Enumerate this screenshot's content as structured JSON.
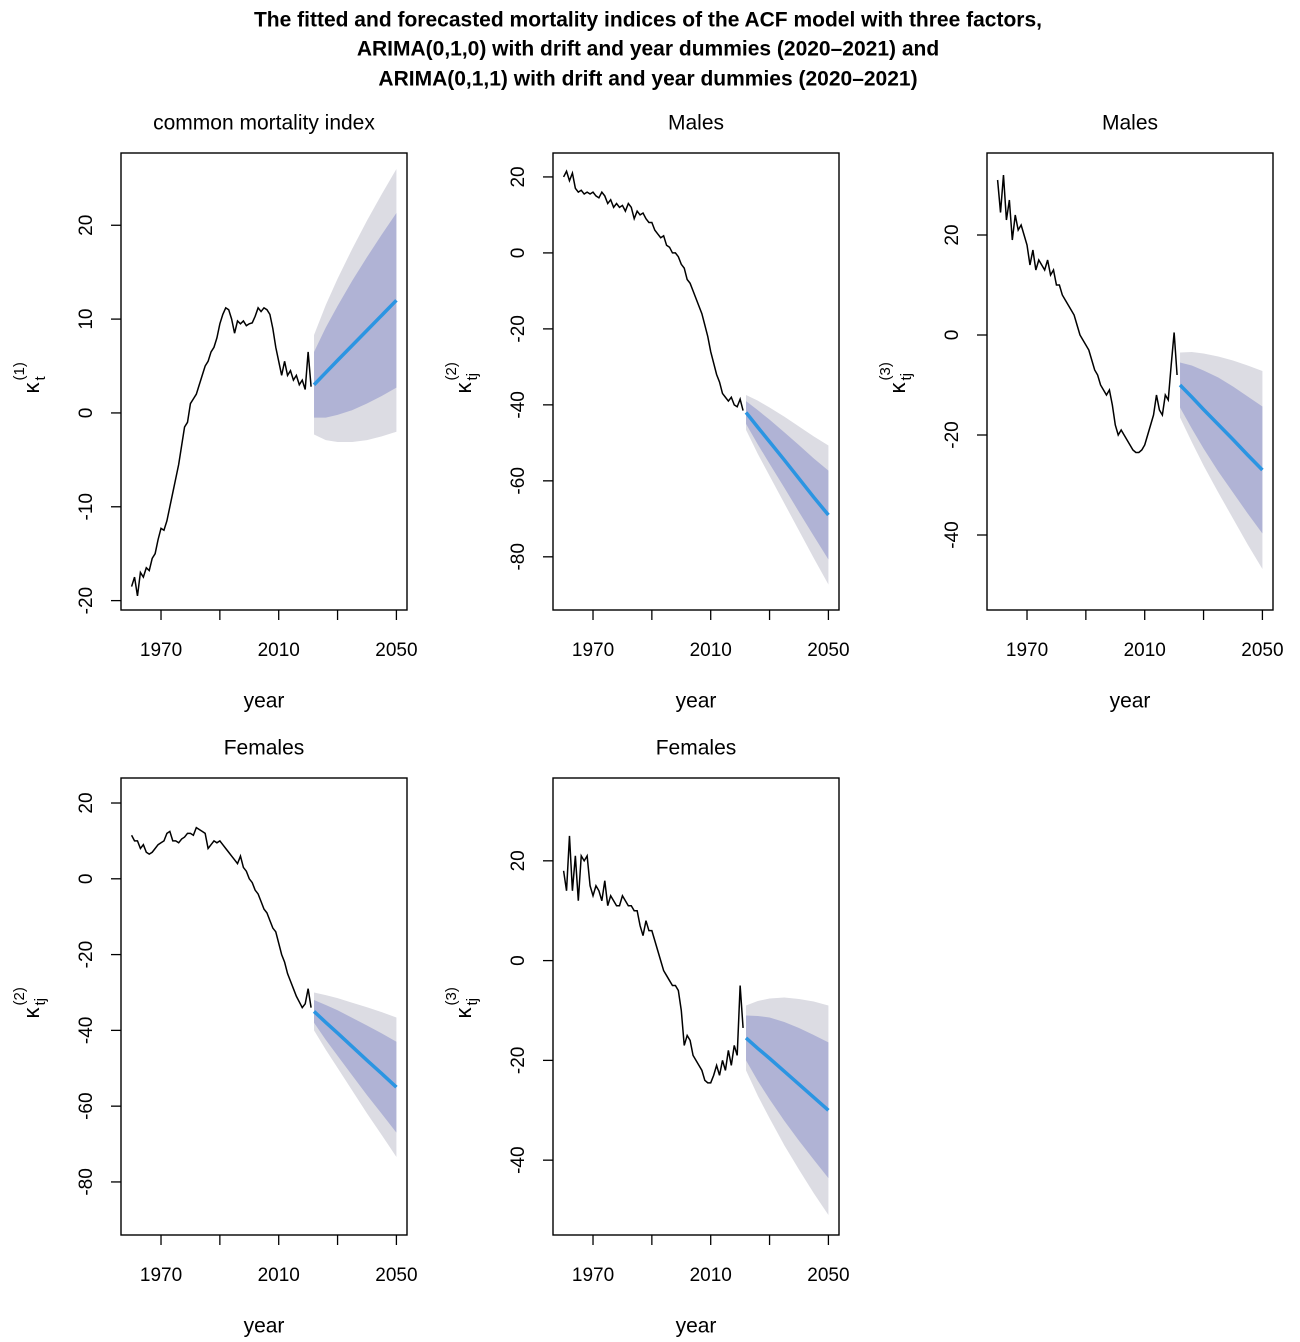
{
  "title": [
    "The fitted and forecasted mortality indices of the ACF model with three factors,",
    "ARIMA(0,1,0) with drift and year dummies (2020–2021) and",
    "ARIMA(0,1,1) with drift and year dummies (2020–2021)"
  ],
  "chart_data": [
    {
      "type": "line",
      "title": "common mortality index",
      "xlabel": "year",
      "ylabel": {
        "symbol": "κ",
        "sub": "t",
        "sup": "(1)"
      },
      "xlim": [
        1956.4,
        2053.6
      ],
      "xticks": [
        1970,
        2010,
        2050
      ],
      "xminor_ticks": [
        1990,
        2030
      ],
      "ylim": [
        -21,
        27.7
      ],
      "yticks": [
        -20,
        -10,
        0,
        10,
        20
      ],
      "fitted": {
        "color": "#000000",
        "x": [
          1960,
          1961,
          1962,
          1963,
          1964,
          1965,
          1966,
          1967,
          1968,
          1969,
          1970,
          1971,
          1972,
          1973,
          1974,
          1975,
          1976,
          1977,
          1978,
          1979,
          1980,
          1981,
          1982,
          1983,
          1984,
          1985,
          1986,
          1987,
          1988,
          1989,
          1990,
          1991,
          1992,
          1993,
          1994,
          1995,
          1996,
          1997,
          1998,
          1999,
          2000,
          2001,
          2002,
          2003,
          2004,
          2005,
          2006,
          2007,
          2008,
          2009,
          2010,
          2011,
          2012,
          2013,
          2014,
          2015,
          2016,
          2017,
          2018,
          2019,
          2020,
          2021
        ],
        "values": [
          -18.5,
          -17.5,
          -19.5,
          -17,
          -17.5,
          -16.5,
          -16.8,
          -15.5,
          -15,
          -13.5,
          -12.3,
          -12.5,
          -11.5,
          -10,
          -8.5,
          -7,
          -5.5,
          -3.5,
          -1.5,
          -1,
          1,
          1.5,
          2,
          3,
          4,
          5,
          5.5,
          6.5,
          7,
          8,
          9.5,
          10.5,
          11.2,
          11,
          10,
          8.5,
          9.8,
          9.5,
          9.8,
          9.3,
          9.5,
          9.6,
          10.3,
          11.2,
          10.8,
          11.2,
          11,
          10.5,
          9,
          7,
          5.5,
          4,
          5.5,
          4,
          4.5,
          3.5,
          4,
          3,
          3.5,
          2.5,
          6.5,
          2.8
        ]
      },
      "forecast": {
        "mean_color": "#2b95e2",
        "color80": "#b0b3d5",
        "color95": "#dcdce3",
        "x": [
          2022,
          2026,
          2030,
          2035,
          2040,
          2045,
          2050
        ],
        "mean": [
          3,
          4.3,
          5.6,
          7.2,
          8.8,
          10.4,
          12
        ],
        "lo80": [
          -0.5,
          -0.5,
          -0.2,
          0.3,
          1.0,
          1.8,
          2.7
        ],
        "hi80": [
          6.5,
          9.1,
          11.4,
          14.1,
          16.6,
          19.0,
          21.3
        ],
        "lo95": [
          -2.3,
          -2.9,
          -3.1,
          -3.1,
          -2.9,
          -2.5,
          -2.0
        ],
        "hi95": [
          8.3,
          11.5,
          14.3,
          17.5,
          20.5,
          23.3,
          26.0
        ]
      }
    },
    {
      "type": "line",
      "title": "Males",
      "xlabel": "year",
      "ylabel": {
        "symbol": "κ",
        "sub": "tj",
        "sup": "(2)"
      },
      "xlim": [
        1956.4,
        2053.6
      ],
      "xticks": [
        1970,
        2010,
        2050
      ],
      "xminor_ticks": [
        1990,
        2030
      ],
      "ylim": [
        -94,
        26.3
      ],
      "yticks": [
        -80,
        -60,
        -40,
        -20,
        0,
        20
      ],
      "fitted": {
        "color": "#000000",
        "x": [
          1960,
          1961,
          1962,
          1963,
          1964,
          1965,
          1966,
          1967,
          1968,
          1969,
          1970,
          1971,
          1972,
          1973,
          1974,
          1975,
          1976,
          1977,
          1978,
          1979,
          1980,
          1981,
          1982,
          1983,
          1984,
          1985,
          1986,
          1987,
          1988,
          1989,
          1990,
          1991,
          1992,
          1993,
          1994,
          1995,
          1996,
          1997,
          1998,
          1999,
          2000,
          2001,
          2002,
          2003,
          2004,
          2005,
          2006,
          2007,
          2008,
          2009,
          2010,
          2011,
          2012,
          2013,
          2014,
          2015,
          2016,
          2017,
          2018,
          2019,
          2020,
          2021
        ],
        "values": [
          20,
          21.5,
          19,
          21,
          17,
          16,
          16.5,
          15.5,
          16,
          15.5,
          16,
          15,
          14.5,
          16,
          15,
          13,
          14,
          12,
          13,
          12,
          12.5,
          11,
          13,
          12,
          9,
          11,
          10,
          10.5,
          9,
          8,
          8,
          6,
          5,
          4,
          4.5,
          2,
          1.5,
          0,
          0,
          -1,
          -3,
          -4,
          -7,
          -8,
          -10,
          -12,
          -14,
          -16,
          -19,
          -22,
          -26,
          -29,
          -32,
          -34,
          -37,
          -38,
          -39,
          -38,
          -40,
          -40.5,
          -38.5,
          -41.5
        ]
      },
      "forecast": {
        "mean_color": "#2b95e2",
        "color80": "#b0b3d5",
        "color95": "#dcdce3",
        "x": [
          2022,
          2026,
          2030,
          2035,
          2040,
          2045,
          2050
        ],
        "mean": [
          -42,
          -45.9,
          -49.7,
          -54.5,
          -59.4,
          -64.3,
          -69
        ],
        "lo80": [
          -45,
          -50.4,
          -55.5,
          -61.8,
          -68.2,
          -74.5,
          -80.7
        ],
        "hi80": [
          -39,
          -41.4,
          -43.9,
          -47.2,
          -50.6,
          -54.1,
          -57.3
        ],
        "lo95": [
          -46.6,
          -52.9,
          -58.7,
          -65.9,
          -73.1,
          -80.3,
          -87.3
        ],
        "hi95": [
          -37.4,
          -38.9,
          -40.7,
          -43.1,
          -45.7,
          -48.3,
          -50.7
        ]
      }
    },
    {
      "type": "line",
      "title": "Males",
      "xlabel": "year",
      "ylabel": {
        "symbol": "κ",
        "sub": "tj",
        "sup": "(3)"
      },
      "xlim": [
        1956.4,
        2053.6
      ],
      "xticks": [
        1970,
        2010,
        2050
      ],
      "xminor_ticks": [
        1990,
        2030
      ],
      "ylim": [
        -55,
        36.4
      ],
      "yticks": [
        -40,
        -20,
        0,
        20
      ],
      "fitted": {
        "color": "#000000",
        "x": [
          1960,
          1961,
          1962,
          1963,
          1964,
          1965,
          1966,
          1967,
          1968,
          1969,
          1970,
          1971,
          1972,
          1973,
          1974,
          1975,
          1976,
          1977,
          1978,
          1979,
          1980,
          1981,
          1982,
          1983,
          1984,
          1985,
          1986,
          1987,
          1988,
          1989,
          1990,
          1991,
          1992,
          1993,
          1994,
          1995,
          1996,
          1997,
          1998,
          1999,
          2000,
          2001,
          2002,
          2003,
          2004,
          2005,
          2006,
          2007,
          2008,
          2009,
          2010,
          2011,
          2012,
          2013,
          2014,
          2015,
          2016,
          2017,
          2018,
          2019,
          2020,
          2021
        ],
        "values": [
          31,
          24.5,
          32,
          23,
          27,
          19,
          24,
          21,
          22,
          20,
          18,
          14,
          17,
          13,
          15,
          14,
          13,
          15,
          12,
          13,
          10,
          10,
          8,
          7,
          6,
          5,
          4,
          2,
          0,
          -1,
          -2,
          -3,
          -5,
          -7,
          -8,
          -10,
          -11,
          -12,
          -11,
          -14,
          -18,
          -20,
          -19,
          -20,
          -21,
          -22,
          -23,
          -23.5,
          -23.5,
          -23,
          -22,
          -20,
          -18,
          -16,
          -12,
          -15,
          -16,
          -12,
          -13,
          -6,
          0.5,
          -8
        ]
      },
      "forecast": {
        "mean_color": "#2b95e2",
        "color80": "#b0b3d5",
        "color95": "#dcdce3",
        "x": [
          2022,
          2026,
          2030,
          2035,
          2040,
          2045,
          2050
        ],
        "mean": [
          -10,
          -12.4,
          -14.9,
          -17.9,
          -20.9,
          -24.0,
          -27
        ],
        "lo80": [
          -14.5,
          -18.7,
          -22.7,
          -27.3,
          -31.5,
          -35.7,
          -39.7
        ],
        "hi80": [
          -5.5,
          -6.1,
          -7.1,
          -8.5,
          -10.3,
          -12.3,
          -14.3
        ],
        "lo95": [
          -16.5,
          -21.4,
          -26.1,
          -31.5,
          -36.7,
          -41.9,
          -46.8
        ],
        "hi95": [
          -3.5,
          -3.4,
          -3.7,
          -4.3,
          -5.1,
          -6.1,
          -7.2
        ]
      }
    },
    {
      "type": "line",
      "title": "Females",
      "xlabel": "year",
      "ylabel": {
        "symbol": "κ",
        "sub": "tj",
        "sup": "(2)"
      },
      "xlim": [
        1956.4,
        2053.6
      ],
      "xticks": [
        1970,
        2010,
        2050
      ],
      "xminor_ticks": [
        1990,
        2030
      ],
      "ylim": [
        -94,
        26.6
      ],
      "yticks": [
        -80,
        -60,
        -40,
        -20,
        0,
        20
      ],
      "fitted": {
        "color": "#000000",
        "x": [
          1960,
          1961,
          1962,
          1963,
          1964,
          1965,
          1966,
          1967,
          1968,
          1969,
          1970,
          1971,
          1972,
          1973,
          1974,
          1975,
          1976,
          1977,
          1978,
          1979,
          1980,
          1981,
          1982,
          1983,
          1984,
          1985,
          1986,
          1987,
          1988,
          1989,
          1990,
          1991,
          1992,
          1993,
          1994,
          1995,
          1996,
          1997,
          1998,
          1999,
          2000,
          2001,
          2002,
          2003,
          2004,
          2005,
          2006,
          2007,
          2008,
          2009,
          2010,
          2011,
          2012,
          2013,
          2014,
          2015,
          2016,
          2017,
          2018,
          2019,
          2020,
          2021
        ],
        "values": [
          11.5,
          10,
          10,
          8,
          9,
          7,
          6.5,
          7,
          8,
          9,
          9.5,
          10,
          12,
          12.5,
          10,
          10,
          9.5,
          10.5,
          11,
          12,
          12,
          11.5,
          13.5,
          13,
          12.5,
          12,
          8,
          9,
          10,
          9.5,
          10,
          9,
          8,
          7,
          6,
          5,
          4,
          6,
          3,
          2,
          0,
          -1,
          -3,
          -4,
          -6,
          -8,
          -9,
          -11,
          -13,
          -14,
          -17,
          -20,
          -22,
          -25,
          -27,
          -29,
          -31,
          -32.5,
          -34,
          -33,
          -29,
          -34
        ]
      },
      "forecast": {
        "mean_color": "#2b95e2",
        "color80": "#b0b3d5",
        "color95": "#dcdce3",
        "x": [
          2022,
          2026,
          2030,
          2035,
          2040,
          2045,
          2050
        ],
        "mean": [
          -35,
          -37.9,
          -40.7,
          -44.3,
          -47.9,
          -51.4,
          -55
        ],
        "lo80": [
          -38,
          -42.5,
          -46.7,
          -51.9,
          -57.1,
          -62.0,
          -67
        ],
        "hi80": [
          -32,
          -33.3,
          -34.7,
          -36.7,
          -38.7,
          -40.8,
          -43
        ],
        "lo95": [
          -40,
          -45.1,
          -49.9,
          -55.9,
          -61.9,
          -67.6,
          -73.4
        ],
        "hi95": [
          -30,
          -30.7,
          -31.5,
          -32.7,
          -33.9,
          -35.2,
          -36.6
        ]
      }
    },
    {
      "type": "line",
      "title": "Females",
      "xlabel": "year",
      "ylabel": {
        "symbol": "κ",
        "sub": "tj",
        "sup": "(3)"
      },
      "xlim": [
        1956.4,
        2053.6
      ],
      "xticks": [
        1970,
        2010,
        2050
      ],
      "xminor_ticks": [
        1990,
        2030
      ],
      "ylim": [
        -55,
        36.6
      ],
      "yticks": [
        -40,
        -20,
        0,
        20
      ],
      "fitted": {
        "color": "#000000",
        "x": [
          1960,
          1961,
          1962,
          1963,
          1964,
          1965,
          1966,
          1967,
          1968,
          1969,
          1970,
          1971,
          1972,
          1973,
          1974,
          1975,
          1976,
          1977,
          1978,
          1979,
          1980,
          1981,
          1982,
          1983,
          1984,
          1985,
          1986,
          1987,
          1988,
          1989,
          1990,
          1991,
          1992,
          1993,
          1994,
          1995,
          1996,
          1997,
          1998,
          1999,
          2000,
          2001,
          2002,
          2003,
          2004,
          2005,
          2006,
          2007,
          2008,
          2009,
          2010,
          2011,
          2012,
          2013,
          2014,
          2015,
          2016,
          2017,
          2018,
          2019,
          2020,
          2021
        ],
        "values": [
          18,
          14,
          25,
          14,
          21,
          12,
          21,
          20,
          21,
          15,
          13,
          15,
          14,
          12,
          16,
          11,
          13,
          12,
          11,
          11,
          13,
          12,
          11,
          11,
          10,
          10,
          7,
          5,
          8,
          6,
          6,
          4,
          2,
          0,
          -2,
          -3,
          -4,
          -5,
          -5,
          -6,
          -10,
          -17,
          -15,
          -16,
          -19,
          -20,
          -21,
          -22,
          -24,
          -24.5,
          -24.5,
          -23,
          -21,
          -23,
          -20,
          -22,
          -18,
          -21,
          -17,
          -19,
          -5,
          -13.5
        ]
      },
      "forecast": {
        "mean_color": "#2b95e2",
        "color80": "#b0b3d5",
        "color95": "#dcdce3",
        "x": [
          2022,
          2026,
          2030,
          2035,
          2040,
          2045,
          2050
        ],
        "mean": [
          -15.5,
          -17.6,
          -19.6,
          -22.2,
          -24.8,
          -27.4,
          -30
        ],
        "lo80": [
          -20,
          -24.1,
          -27.8,
          -32.1,
          -36.1,
          -39.9,
          -43.6
        ],
        "hi80": [
          -11,
          -11.1,
          -11.4,
          -12.3,
          -13.5,
          -14.9,
          -16.4
        ],
        "lo95": [
          -22,
          -27.1,
          -31.6,
          -37.0,
          -41.9,
          -46.6,
          -51
        ],
        "hi95": [
          -9,
          -8.1,
          -7.6,
          -7.4,
          -7.7,
          -8.2,
          -9
        ]
      }
    }
  ]
}
